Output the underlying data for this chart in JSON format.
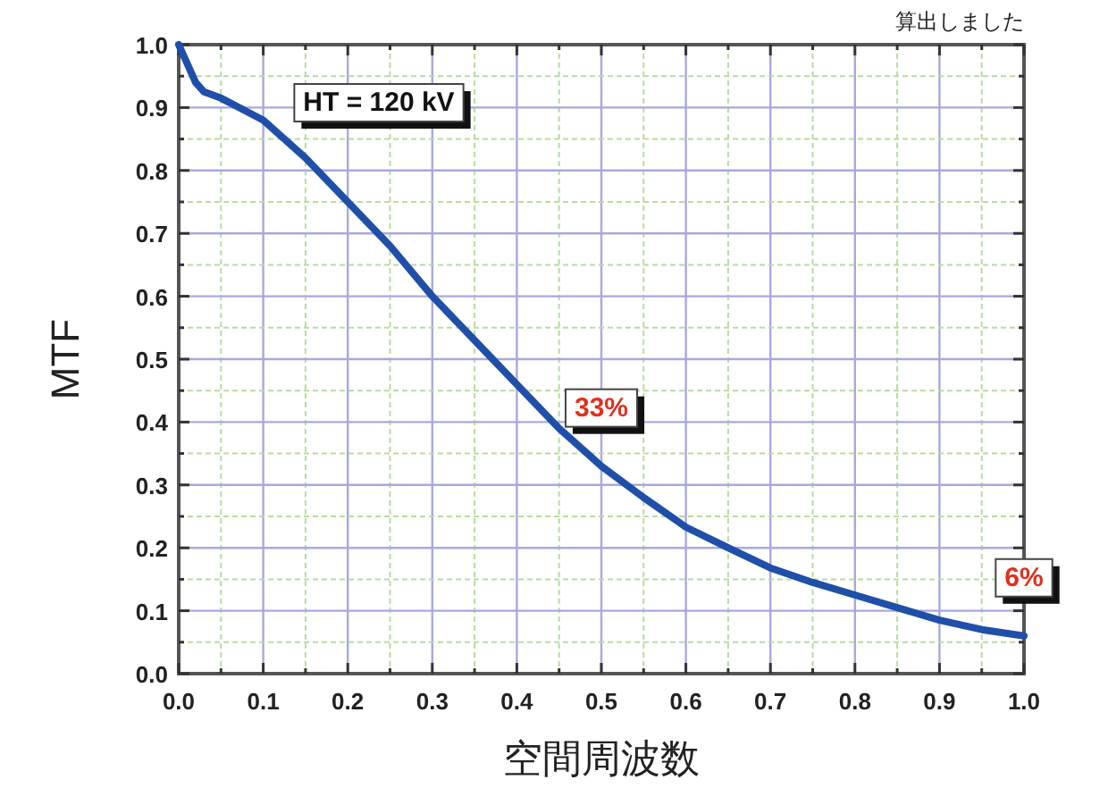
{
  "chart_data": {
    "type": "line",
    "xlabel": "空間周波数",
    "ylabel": "MTF",
    "x": [
      0,
      0.01,
      0.02,
      0.03,
      0.05,
      0.1,
      0.15,
      0.2,
      0.25,
      0.3,
      0.35,
      0.4,
      0.45,
      0.5,
      0.55,
      0.6,
      0.65,
      0.7,
      0.75,
      0.8,
      0.85,
      0.9,
      0.95,
      1.0
    ],
    "series": [
      {
        "color": "#1f4fa8",
        "values": [
          1.0,
          0.97,
          0.94,
          0.925,
          0.915,
          0.88,
          0.82,
          0.75,
          0.68,
          0.6,
          0.53,
          0.46,
          0.39,
          0.33,
          0.28,
          0.233,
          0.2,
          0.168,
          0.145,
          0.125,
          0.105,
          0.085,
          0.07,
          0.06
        ]
      }
    ],
    "xlim": [
      0,
      1
    ],
    "ylim": [
      0,
      1
    ],
    "xticks": [
      {
        "value": 0,
        "label": "0.0"
      },
      {
        "value": 0.05,
        "label": null
      },
      0.1,
      {
        "value": 0.15,
        "label": null
      },
      0.2,
      {
        "value": 0.25,
        "label": null
      },
      0.3,
      {
        "value": 0.35,
        "label": null
      },
      0.4,
      {
        "value": 0.45,
        "label": null
      },
      0.5,
      {
        "value": 0.55,
        "label": null
      },
      0.6,
      {
        "value": 0.65,
        "label": null
      },
      0.7,
      {
        "value": 0.75,
        "label": null
      },
      0.8,
      {
        "value": 0.85,
        "label": null
      },
      0.9,
      {
        "value": 0.95,
        "label": null
      },
      {
        "value": 1,
        "label": "1.0"
      }
    ],
    "yticks": [
      {
        "value": 0,
        "label": "0.0"
      },
      {
        "value": 0.05,
        "label": null
      },
      0.1,
      {
        "value": 0.15,
        "label": null
      },
      0.2,
      {
        "value": 0.25,
        "label": null
      },
      0.3,
      {
        "value": 0.35,
        "label": null
      },
      0.4,
      {
        "value": 0.45,
        "label": null
      },
      0.5,
      {
        "value": 0.55,
        "label": null
      },
      0.6,
      {
        "value": 0.65,
        "label": null
      },
      0.7,
      {
        "value": 0.75,
        "label": null
      },
      0.8,
      {
        "value": 0.85,
        "label": null
      },
      0.9,
      {
        "value": 0.95,
        "label": null
      },
      {
        "value": 1,
        "label": "1.0"
      }
    ],
    "grid": true,
    "annotations": [
      "HT = 120 kV",
      "算出しました",
      {
        "text": "33%",
        "x": 0.5,
        "y": 0.33
      },
      {
        "text": "6%",
        "x": 1.0,
        "y": 0.06
      }
    ]
  }
}
